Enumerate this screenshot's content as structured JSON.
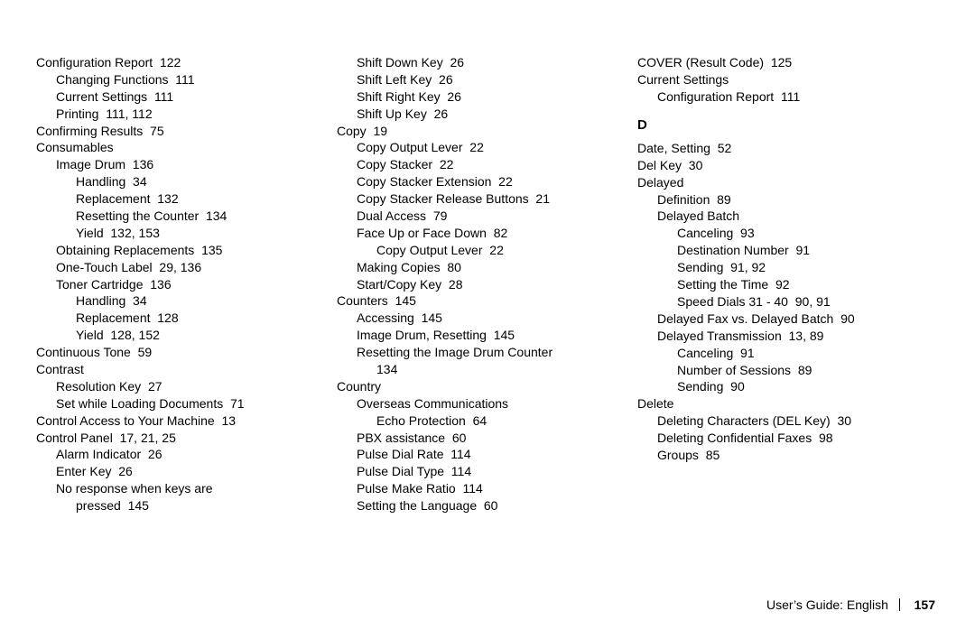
{
  "colors": {
    "text": "#000000",
    "background": "#ffffff"
  },
  "typography": {
    "font_family": "Helvetica Neue, Helvetica, Arial, sans-serif",
    "font_size_pt": 10.5,
    "line_height": 1.35
  },
  "footer": {
    "label": "User’s Guide:  English",
    "page": "157"
  },
  "section_header": "D",
  "columns": [
    [
      {
        "lvl": 0,
        "text": "Configuration Report  122"
      },
      {
        "lvl": 1,
        "text": "Changing Functions  111"
      },
      {
        "lvl": 1,
        "text": "Current Settings  111"
      },
      {
        "lvl": 1,
        "text": "Printing  111, 112"
      },
      {
        "lvl": 0,
        "text": "Confirming Results  75"
      },
      {
        "lvl": 0,
        "text": "Consumables"
      },
      {
        "lvl": 1,
        "text": "Image Drum  136"
      },
      {
        "lvl": 2,
        "text": "Handling  34"
      },
      {
        "lvl": 2,
        "text": "Replacement  132"
      },
      {
        "lvl": 2,
        "text": "Resetting the Counter  134"
      },
      {
        "lvl": 2,
        "text": "Yield  132, 153"
      },
      {
        "lvl": 1,
        "text": "Obtaining Replacements  135"
      },
      {
        "lvl": 1,
        "text": "One-Touch Label  29, 136"
      },
      {
        "lvl": 1,
        "text": "Toner Cartridge  136"
      },
      {
        "lvl": 2,
        "text": "Handling  34"
      },
      {
        "lvl": 2,
        "text": "Replacement  128"
      },
      {
        "lvl": 2,
        "text": "Yield  128, 152"
      },
      {
        "lvl": 0,
        "text": "Continuous Tone  59"
      },
      {
        "lvl": 0,
        "text": "Contrast"
      },
      {
        "lvl": 1,
        "text": "Resolution Key  27"
      },
      {
        "lvl": 1,
        "text": "Set while Loading Documents  71"
      },
      {
        "lvl": 0,
        "text": "Control Access to Your Machine  13"
      },
      {
        "lvl": 0,
        "text": "Control Panel  17, 21, 25"
      },
      {
        "lvl": 1,
        "text": "Alarm Indicator  26"
      },
      {
        "lvl": 1,
        "text": "Enter Key  26"
      },
      {
        "lvl": 1,
        "text": "No response when keys are"
      },
      {
        "lvl": 2,
        "text": "pressed  145"
      }
    ],
    [
      {
        "lvl": 1,
        "text": "Shift Down Key  26"
      },
      {
        "lvl": 1,
        "text": "Shift Left Key  26"
      },
      {
        "lvl": 1,
        "text": "Shift Right Key  26"
      },
      {
        "lvl": 1,
        "text": "Shift Up Key  26"
      },
      {
        "lvl": 0,
        "text": "Copy  19"
      },
      {
        "lvl": 1,
        "text": "Copy Output Lever  22"
      },
      {
        "lvl": 1,
        "text": "Copy Stacker  22"
      },
      {
        "lvl": 1,
        "text": "Copy Stacker Extension  22"
      },
      {
        "lvl": 1,
        "text": "Copy Stacker Release Buttons  21"
      },
      {
        "lvl": 1,
        "text": "Dual Access  79"
      },
      {
        "lvl": 1,
        "text": "Face Up or Face Down  82"
      },
      {
        "lvl": 2,
        "text": "Copy Output Lever  22"
      },
      {
        "lvl": 1,
        "text": "Making Copies  80"
      },
      {
        "lvl": 1,
        "text": "Start/Copy Key  28"
      },
      {
        "lvl": 0,
        "text": "Counters  145"
      },
      {
        "lvl": 1,
        "text": "Accessing  145"
      },
      {
        "lvl": 1,
        "text": "Image Drum, Resetting  145"
      },
      {
        "lvl": 1,
        "text": "Resetting the Image Drum Counter"
      },
      {
        "lvl": 2,
        "text": "134"
      },
      {
        "lvl": 0,
        "text": "Country"
      },
      {
        "lvl": 1,
        "text": "Overseas Communications"
      },
      {
        "lvl": 2,
        "text": "Echo Protection  64"
      },
      {
        "lvl": 1,
        "text": "PBX assistance  60"
      },
      {
        "lvl": 1,
        "text": "Pulse Dial Rate  114"
      },
      {
        "lvl": 1,
        "text": "Pulse Dial Type  114"
      },
      {
        "lvl": 1,
        "text": "Pulse Make Ratio  114"
      },
      {
        "lvl": 1,
        "text": "Setting the Language  60"
      }
    ],
    [
      {
        "lvl": 0,
        "text": "COVER (Result Code)  125"
      },
      {
        "lvl": 0,
        "text": "Current Settings"
      },
      {
        "lvl": 1,
        "text": "Configuration Report  111"
      },
      {
        "header": true
      },
      {
        "lvl": 0,
        "text": "Date, Setting  52"
      },
      {
        "lvl": 0,
        "text": "Del Key  30"
      },
      {
        "lvl": 0,
        "text": "Delayed"
      },
      {
        "lvl": 1,
        "text": "Definition  89"
      },
      {
        "lvl": 1,
        "text": "Delayed Batch"
      },
      {
        "lvl": 2,
        "text": "Canceling  93"
      },
      {
        "lvl": 2,
        "text": "Destination Number  91"
      },
      {
        "lvl": 2,
        "text": "Sending  91, 92"
      },
      {
        "lvl": 2,
        "text": "Setting the Time  92"
      },
      {
        "lvl": 2,
        "text": "Speed Dials 31 - 40  90, 91"
      },
      {
        "lvl": 1,
        "text": "Delayed Fax vs. Delayed Batch  90"
      },
      {
        "lvl": 1,
        "text": "Delayed Transmission  13, 89"
      },
      {
        "lvl": 2,
        "text": "Canceling  91"
      },
      {
        "lvl": 2,
        "text": "Number of Sessions  89"
      },
      {
        "lvl": 2,
        "text": "Sending  90"
      },
      {
        "lvl": 0,
        "text": "Delete"
      },
      {
        "lvl": 1,
        "text": "Deleting Characters (DEL Key)  30"
      },
      {
        "lvl": 1,
        "text": "Deleting Confidential Faxes  98"
      },
      {
        "lvl": 1,
        "text": "Groups  85"
      }
    ]
  ]
}
